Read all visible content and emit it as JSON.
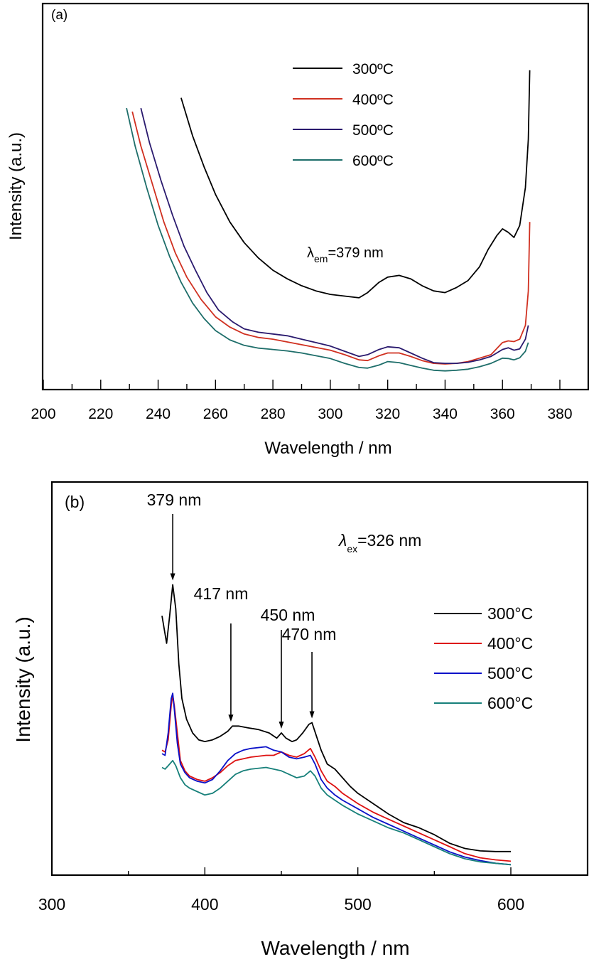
{
  "chart_data": [
    {
      "type": "line",
      "panel_label": "(a)",
      "title": "",
      "xlabel": "Wavelength / nm",
      "ylabel": "Intensity (a.u.)",
      "xlim": [
        200,
        390
      ],
      "ylim": [
        0,
        100
      ],
      "x_ticks": [
        200,
        220,
        240,
        260,
        280,
        300,
        320,
        340,
        360,
        380
      ],
      "y_ticks": [],
      "grid": false,
      "legend_position": "top-center",
      "annotation": {
        "symbol": "λ",
        "subscript": "em",
        "text": "=379 nm"
      },
      "series": [
        {
          "name": "300ºC",
          "color": "#000000",
          "x": [
            248,
            252,
            256,
            260,
            265,
            270,
            275,
            280,
            285,
            290,
            295,
            300,
            305,
            310,
            313,
            317,
            320,
            324,
            328,
            332,
            336,
            340,
            344,
            348,
            352,
            355,
            358,
            360,
            362,
            364,
            366,
            368,
            369,
            369.5
          ],
          "y": [
            84,
            73,
            64,
            56,
            48,
            42,
            37.5,
            34,
            31.5,
            29.5,
            28,
            27,
            26.5,
            26,
            27.5,
            30.5,
            32,
            32.5,
            31.5,
            29.5,
            28,
            27.5,
            29,
            31,
            35,
            40,
            44,
            46,
            45,
            43.5,
            47,
            58,
            72,
            92
          ]
        },
        {
          "name": "400ºC",
          "color": "#d03020",
          "x": [
            231,
            234,
            238,
            242,
            246,
            250,
            255,
            260,
            265,
            270,
            275,
            280,
            285,
            290,
            295,
            300,
            305,
            310,
            313,
            317,
            320,
            324,
            328,
            332,
            336,
            340,
            344,
            348,
            352,
            356,
            360,
            362,
            364,
            366,
            368,
            369,
            369.5
          ],
          "y": [
            80,
            70,
            59,
            48,
            39,
            32,
            25.5,
            20.5,
            17.5,
            15.5,
            14.5,
            14,
            13.2,
            12.4,
            11.6,
            10.8,
            9.5,
            8,
            7.8,
            9.2,
            10,
            10,
            9,
            7.8,
            7,
            6.8,
            7,
            7.5,
            8.5,
            9.5,
            13,
            13.5,
            13.3,
            14,
            18,
            28,
            48
          ]
        },
        {
          "name": "500ºC",
          "color": "#2a1a6e",
          "x": [
            234,
            237,
            241,
            245,
            249,
            253,
            257,
            261,
            266,
            270,
            275,
            280,
            285,
            290,
            295,
            300,
            305,
            310,
            313,
            317,
            320,
            324,
            328,
            332,
            336,
            340,
            344,
            348,
            352,
            356,
            360,
            362,
            364,
            366,
            368,
            369
          ],
          "y": [
            81,
            71,
            60,
            50,
            41,
            34,
            27.5,
            22.5,
            19,
            17,
            16,
            15.5,
            15,
            14,
            13,
            12,
            10.5,
            9,
            9.5,
            11,
            11.8,
            11.5,
            10,
            8.5,
            7.2,
            7,
            7,
            7.3,
            8,
            9,
            11,
            11.5,
            10.8,
            11.2,
            14,
            18
          ]
        },
        {
          "name": "600ºC",
          "color": "#1e6e6a",
          "x": [
            229,
            232,
            236,
            240,
            244,
            248,
            252,
            256,
            260,
            265,
            270,
            275,
            280,
            285,
            290,
            295,
            300,
            305,
            310,
            313,
            317,
            320,
            324,
            328,
            332,
            336,
            340,
            344,
            348,
            352,
            356,
            360,
            362,
            364,
            366,
            368,
            369
          ],
          "y": [
            81,
            70,
            58,
            47,
            38,
            30.5,
            24.5,
            20,
            16.5,
            13.8,
            12.2,
            11.4,
            11,
            10.6,
            10,
            9.2,
            8.4,
            7,
            5.8,
            5.6,
            6.5,
            7.5,
            7.2,
            6.4,
            5.6,
            5,
            4.8,
            5,
            5.3,
            6,
            7,
            8.5,
            8.4,
            8,
            8.6,
            10.5,
            13
          ]
        }
      ]
    },
    {
      "type": "line",
      "panel_label": "(b)",
      "title": "",
      "xlabel": "Wavelength / nm",
      "ylabel": "Intensity (a.u.)",
      "xlim": [
        300,
        650
      ],
      "ylim": [
        0,
        100
      ],
      "x_ticks": [
        300,
        400,
        500,
        600
      ],
      "x_minor_ticks": [
        350,
        450,
        550
      ],
      "y_ticks": [],
      "grid": false,
      "legend_position": "right",
      "annotation": {
        "symbol": "λ",
        "subscript": "ex",
        "text": "=326 nm"
      },
      "peak_labels": [
        {
          "text": "379 nm",
          "x": 379
        },
        {
          "text": "417 nm",
          "x": 417
        },
        {
          "text": "450 nm",
          "x": 450
        },
        {
          "text": "470 nm",
          "x": 470
        }
      ],
      "series": [
        {
          "name": "300°C",
          "color": "#000000",
          "x": [
            372,
            375,
            377,
            379,
            381,
            383,
            385,
            388,
            392,
            396,
            400,
            405,
            410,
            415,
            418,
            422,
            428,
            435,
            442,
            447,
            450,
            453,
            457,
            460,
            464,
            468,
            470,
            473,
            476,
            480,
            485,
            490,
            495,
            500,
            510,
            520,
            530,
            540,
            550,
            560,
            570,
            580,
            590,
            600
          ],
          "y": [
            74,
            66,
            74,
            83,
            76,
            60,
            50,
            44,
            40,
            38,
            37.5,
            38,
            39,
            40.5,
            42,
            42,
            41.5,
            41,
            40,
            38.5,
            40,
            38.5,
            37.5,
            38,
            40,
            42.5,
            43,
            39,
            35,
            31,
            29.5,
            27,
            24.5,
            22.5,
            19.5,
            16.5,
            14,
            12.5,
            10.5,
            8,
            6.5,
            5.8,
            5.6,
            5.6
          ]
        },
        {
          "name": "400°C",
          "color": "#dd1111",
          "x": [
            372,
            374,
            376,
            378,
            379,
            380,
            382,
            384,
            387,
            390,
            395,
            400,
            405,
            410,
            415,
            420,
            425,
            430,
            440,
            445,
            450,
            455,
            460,
            465,
            469,
            472,
            476,
            480,
            485,
            490,
            500,
            510,
            520,
            530,
            540,
            550,
            560,
            570,
            580,
            590,
            600
          ],
          "y": [
            35,
            34.5,
            38,
            48,
            51,
            48,
            40,
            32,
            29,
            27.5,
            26.5,
            26,
            27,
            28.5,
            30.5,
            32,
            32.5,
            33,
            33.5,
            33.5,
            34.5,
            33.5,
            33,
            34,
            35.5,
            33,
            29,
            26,
            24.5,
            22.5,
            19.5,
            17,
            15,
            13,
            11,
            9,
            7,
            5,
            3.8,
            3.2,
            2.8
          ]
        },
        {
          "name": "500°C",
          "color": "#0a10c8",
          "x": [
            372,
            374,
            376,
            378,
            379,
            380,
            382,
            384,
            387,
            390,
            395,
            400,
            405,
            410,
            415,
            420,
            425,
            430,
            440,
            445,
            450,
            455,
            460,
            465,
            469,
            472,
            476,
            480,
            485,
            490,
            500,
            510,
            520,
            530,
            540,
            550,
            560,
            570,
            580,
            590,
            600
          ],
          "y": [
            34,
            33.5,
            40,
            50,
            51.5,
            47,
            37,
            31,
            28.5,
            27,
            26,
            25.5,
            26.5,
            29,
            32,
            34,
            35,
            35.5,
            36,
            35,
            34.5,
            33,
            32.5,
            33,
            33.5,
            31,
            26.5,
            24,
            22,
            20.5,
            18,
            15.5,
            13.5,
            11.5,
            9.5,
            7.5,
            5.5,
            4,
            3,
            2.2,
            1.8
          ]
        },
        {
          "name": "600°C",
          "color": "#17807a",
          "x": [
            372,
            374,
            376,
            379,
            381,
            384,
            387,
            390,
            395,
            400,
            405,
            410,
            415,
            420,
            425,
            430,
            440,
            445,
            450,
            455,
            460,
            465,
            469,
            472,
            476,
            480,
            485,
            490,
            500,
            510,
            520,
            530,
            540,
            550,
            560,
            570,
            580,
            590,
            600
          ],
          "y": [
            30,
            29.5,
            30.5,
            32,
            30.5,
            27,
            25,
            24,
            23,
            22,
            22.5,
            24,
            26,
            28,
            29,
            29.5,
            30,
            29.5,
            29,
            28,
            27,
            27.5,
            29,
            27.5,
            24,
            22,
            20.5,
            19,
            16.5,
            14.5,
            12.5,
            11,
            9,
            7,
            5,
            3.5,
            2.6,
            2.2,
            1.8
          ]
        }
      ]
    }
  ]
}
